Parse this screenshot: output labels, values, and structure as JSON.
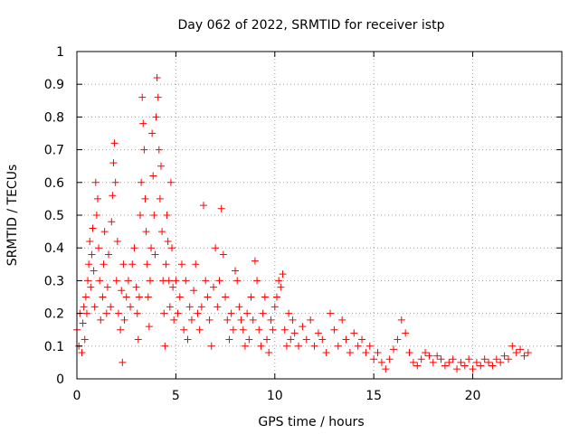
{
  "chart_data": {
    "type": "scatter",
    "title": "Day 062 of 2022, SRMTID for receiver istp",
    "xlabel": "GPS time / hours",
    "ylabel": "SRMTID / TECUs",
    "xlim": [
      0,
      24.5
    ],
    "ylim": [
      0,
      1
    ],
    "x_ticks": [
      0,
      5,
      10,
      15,
      20
    ],
    "x_tick_labels": [
      "0",
      "5",
      "10",
      "15",
      "20"
    ],
    "y_ticks": [
      0,
      0.1,
      0.2,
      0.3,
      0.4,
      0.5,
      0.6,
      0.7,
      0.8,
      0.9,
      1
    ],
    "y_tick_labels": [
      "0",
      "0.1",
      "0.2",
      "0.3",
      "0.4",
      "0.5",
      "0.6",
      "0.7",
      "0.8",
      "0.9",
      "1"
    ],
    "grid": true,
    "legend": "none",
    "marker": "+",
    "marker_color": "#ff0000",
    "series": [
      {
        "name": "SRMTID",
        "points": [
          [
            0.0,
            0.15
          ],
          [
            0.1,
            0.1
          ],
          [
            0.15,
            0.2
          ],
          [
            0.25,
            0.08
          ],
          [
            0.3,
            0.17
          ],
          [
            0.35,
            0.22
          ],
          [
            0.4,
            0.12
          ],
          [
            0.45,
            0.25
          ],
          [
            0.5,
            0.2
          ],
          [
            0.55,
            0.3
          ],
          [
            0.6,
            0.35
          ],
          [
            0.65,
            0.42
          ],
          [
            0.7,
            0.28
          ],
          [
            0.75,
            0.38
          ],
          [
            0.8,
            0.46
          ],
          [
            0.85,
            0.33
          ],
          [
            0.9,
            0.22
          ],
          [
            0.95,
            0.6
          ],
          [
            1.0,
            0.5
          ],
          [
            1.05,
            0.55
          ],
          [
            1.1,
            0.4
          ],
          [
            1.15,
            0.3
          ],
          [
            1.2,
            0.18
          ],
          [
            1.3,
            0.25
          ],
          [
            1.35,
            0.35
          ],
          [
            1.4,
            0.45
          ],
          [
            1.5,
            0.2
          ],
          [
            1.55,
            0.28
          ],
          [
            1.6,
            0.38
          ],
          [
            1.7,
            0.22
          ],
          [
            1.75,
            0.48
          ],
          [
            1.8,
            0.56
          ],
          [
            1.85,
            0.66
          ],
          [
            1.9,
            0.72
          ],
          [
            1.95,
            0.6
          ],
          [
            2.0,
            0.3
          ],
          [
            2.05,
            0.42
          ],
          [
            2.1,
            0.2
          ],
          [
            2.2,
            0.15
          ],
          [
            2.25,
            0.27
          ],
          [
            2.3,
            0.05
          ],
          [
            2.35,
            0.35
          ],
          [
            2.4,
            0.18
          ],
          [
            2.5,
            0.25
          ],
          [
            2.6,
            0.3
          ],
          [
            2.7,
            0.22
          ],
          [
            2.8,
            0.35
          ],
          [
            2.9,
            0.4
          ],
          [
            3.0,
            0.28
          ],
          [
            3.05,
            0.2
          ],
          [
            3.1,
            0.12
          ],
          [
            3.15,
            0.25
          ],
          [
            3.2,
            0.5
          ],
          [
            3.25,
            0.6
          ],
          [
            3.3,
            0.86
          ],
          [
            3.35,
            0.78
          ],
          [
            3.4,
            0.7
          ],
          [
            3.45,
            0.55
          ],
          [
            3.5,
            0.45
          ],
          [
            3.55,
            0.35
          ],
          [
            3.6,
            0.25
          ],
          [
            3.65,
            0.16
          ],
          [
            3.7,
            0.3
          ],
          [
            3.75,
            0.4
          ],
          [
            3.8,
            0.75
          ],
          [
            3.85,
            0.62
          ],
          [
            3.9,
            0.5
          ],
          [
            3.95,
            0.38
          ],
          [
            4.0,
            0.8
          ],
          [
            4.05,
            0.92
          ],
          [
            4.1,
            0.86
          ],
          [
            4.15,
            0.7
          ],
          [
            4.2,
            0.55
          ],
          [
            4.25,
            0.65
          ],
          [
            4.3,
            0.45
          ],
          [
            4.35,
            0.3
          ],
          [
            4.4,
            0.2
          ],
          [
            4.45,
            0.1
          ],
          [
            4.5,
            0.35
          ],
          [
            4.55,
            0.5
          ],
          [
            4.6,
            0.42
          ],
          [
            4.65,
            0.3
          ],
          [
            4.7,
            0.22
          ],
          [
            4.75,
            0.6
          ],
          [
            4.8,
            0.4
          ],
          [
            4.85,
            0.28
          ],
          [
            4.9,
            0.18
          ],
          [
            5.0,
            0.3
          ],
          [
            5.1,
            0.2
          ],
          [
            5.2,
            0.25
          ],
          [
            5.3,
            0.35
          ],
          [
            5.4,
            0.15
          ],
          [
            5.5,
            0.3
          ],
          [
            5.6,
            0.12
          ],
          [
            5.7,
            0.22
          ],
          [
            5.8,
            0.18
          ],
          [
            5.9,
            0.27
          ],
          [
            6.0,
            0.35
          ],
          [
            6.1,
            0.2
          ],
          [
            6.2,
            0.15
          ],
          [
            6.3,
            0.22
          ],
          [
            6.4,
            0.53
          ],
          [
            6.5,
            0.3
          ],
          [
            6.6,
            0.25
          ],
          [
            6.7,
            0.18
          ],
          [
            6.8,
            0.1
          ],
          [
            6.9,
            0.28
          ],
          [
            7.0,
            0.4
          ],
          [
            7.1,
            0.22
          ],
          [
            7.2,
            0.3
          ],
          [
            7.3,
            0.52
          ],
          [
            7.4,
            0.38
          ],
          [
            7.5,
            0.25
          ],
          [
            7.6,
            0.18
          ],
          [
            7.7,
            0.12
          ],
          [
            7.8,
            0.2
          ],
          [
            7.9,
            0.15
          ],
          [
            8.0,
            0.33
          ],
          [
            8.1,
            0.3
          ],
          [
            8.2,
            0.22
          ],
          [
            8.3,
            0.18
          ],
          [
            8.4,
            0.15
          ],
          [
            8.5,
            0.1
          ],
          [
            8.6,
            0.2
          ],
          [
            8.7,
            0.12
          ],
          [
            8.8,
            0.25
          ],
          [
            8.9,
            0.18
          ],
          [
            9.0,
            0.36
          ],
          [
            9.1,
            0.3
          ],
          [
            9.2,
            0.15
          ],
          [
            9.3,
            0.1
          ],
          [
            9.4,
            0.2
          ],
          [
            9.5,
            0.25
          ],
          [
            9.6,
            0.12
          ],
          [
            9.7,
            0.08
          ],
          [
            9.8,
            0.18
          ],
          [
            9.9,
            0.15
          ],
          [
            10.0,
            0.22
          ],
          [
            10.1,
            0.25
          ],
          [
            10.2,
            0.3
          ],
          [
            10.3,
            0.28
          ],
          [
            10.4,
            0.32
          ],
          [
            10.5,
            0.15
          ],
          [
            10.6,
            0.1
          ],
          [
            10.7,
            0.2
          ],
          [
            10.8,
            0.12
          ],
          [
            10.9,
            0.18
          ],
          [
            11.0,
            0.14
          ],
          [
            11.2,
            0.1
          ],
          [
            11.4,
            0.16
          ],
          [
            11.6,
            0.12
          ],
          [
            11.8,
            0.18
          ],
          [
            12.0,
            0.1
          ],
          [
            12.2,
            0.14
          ],
          [
            12.4,
            0.12
          ],
          [
            12.6,
            0.08
          ],
          [
            12.8,
            0.2
          ],
          [
            13.0,
            0.15
          ],
          [
            13.2,
            0.1
          ],
          [
            13.4,
            0.18
          ],
          [
            13.6,
            0.12
          ],
          [
            13.8,
            0.08
          ],
          [
            14.0,
            0.14
          ],
          [
            14.2,
            0.1
          ],
          [
            14.4,
            0.12
          ],
          [
            14.6,
            0.08
          ],
          [
            14.8,
            0.1
          ],
          [
            15.0,
            0.06
          ],
          [
            15.2,
            0.08
          ],
          [
            15.4,
            0.05
          ],
          [
            15.6,
            0.03
          ],
          [
            15.8,
            0.06
          ],
          [
            16.0,
            0.09
          ],
          [
            16.2,
            0.12
          ],
          [
            16.4,
            0.18
          ],
          [
            16.6,
            0.14
          ],
          [
            16.8,
            0.08
          ],
          [
            17.0,
            0.05
          ],
          [
            17.2,
            0.04
          ],
          [
            17.4,
            0.06
          ],
          [
            17.6,
            0.08
          ],
          [
            17.8,
            0.07
          ],
          [
            18.0,
            0.05
          ],
          [
            18.2,
            0.07
          ],
          [
            18.4,
            0.06
          ],
          [
            18.6,
            0.04
          ],
          [
            18.8,
            0.05
          ],
          [
            19.0,
            0.06
          ],
          [
            19.2,
            0.03
          ],
          [
            19.4,
            0.05
          ],
          [
            19.6,
            0.04
          ],
          [
            19.8,
            0.06
          ],
          [
            20.0,
            0.03
          ],
          [
            20.2,
            0.05
          ],
          [
            20.4,
            0.04
          ],
          [
            20.6,
            0.06
          ],
          [
            20.8,
            0.05
          ],
          [
            21.0,
            0.04
          ],
          [
            21.2,
            0.06
          ],
          [
            21.4,
            0.05
          ],
          [
            21.6,
            0.07
          ],
          [
            21.8,
            0.06
          ],
          [
            22.0,
            0.1
          ],
          [
            22.2,
            0.08
          ],
          [
            22.4,
            0.09
          ],
          [
            22.6,
            0.07
          ],
          [
            22.8,
            0.08
          ]
        ]
      }
    ]
  }
}
